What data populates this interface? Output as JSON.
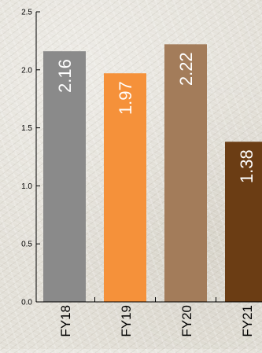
{
  "chart_data": {
    "type": "bar",
    "categories": [
      "FY18",
      "FY19",
      "FY20",
      "FY21"
    ],
    "values": [
      2.16,
      1.97,
      2.22,
      1.38
    ],
    "value_labels": [
      "2.16",
      "1.97",
      "2.22",
      "1.38"
    ],
    "colors": [
      "#8a8a8a",
      "#f5913a",
      "#a37c5a",
      "#6b3d14"
    ],
    "ylim": [
      0,
      2.5
    ],
    "yticks": [
      0.0,
      0.5,
      1.0,
      1.5,
      2.0,
      2.5
    ],
    "ytick_labels": [
      "0.0",
      "0.5",
      "1.0",
      "1.5",
      "2.0",
      "2.5"
    ],
    "title": "",
    "xlabel": "",
    "ylabel": "",
    "grid": false,
    "legend": "none"
  }
}
